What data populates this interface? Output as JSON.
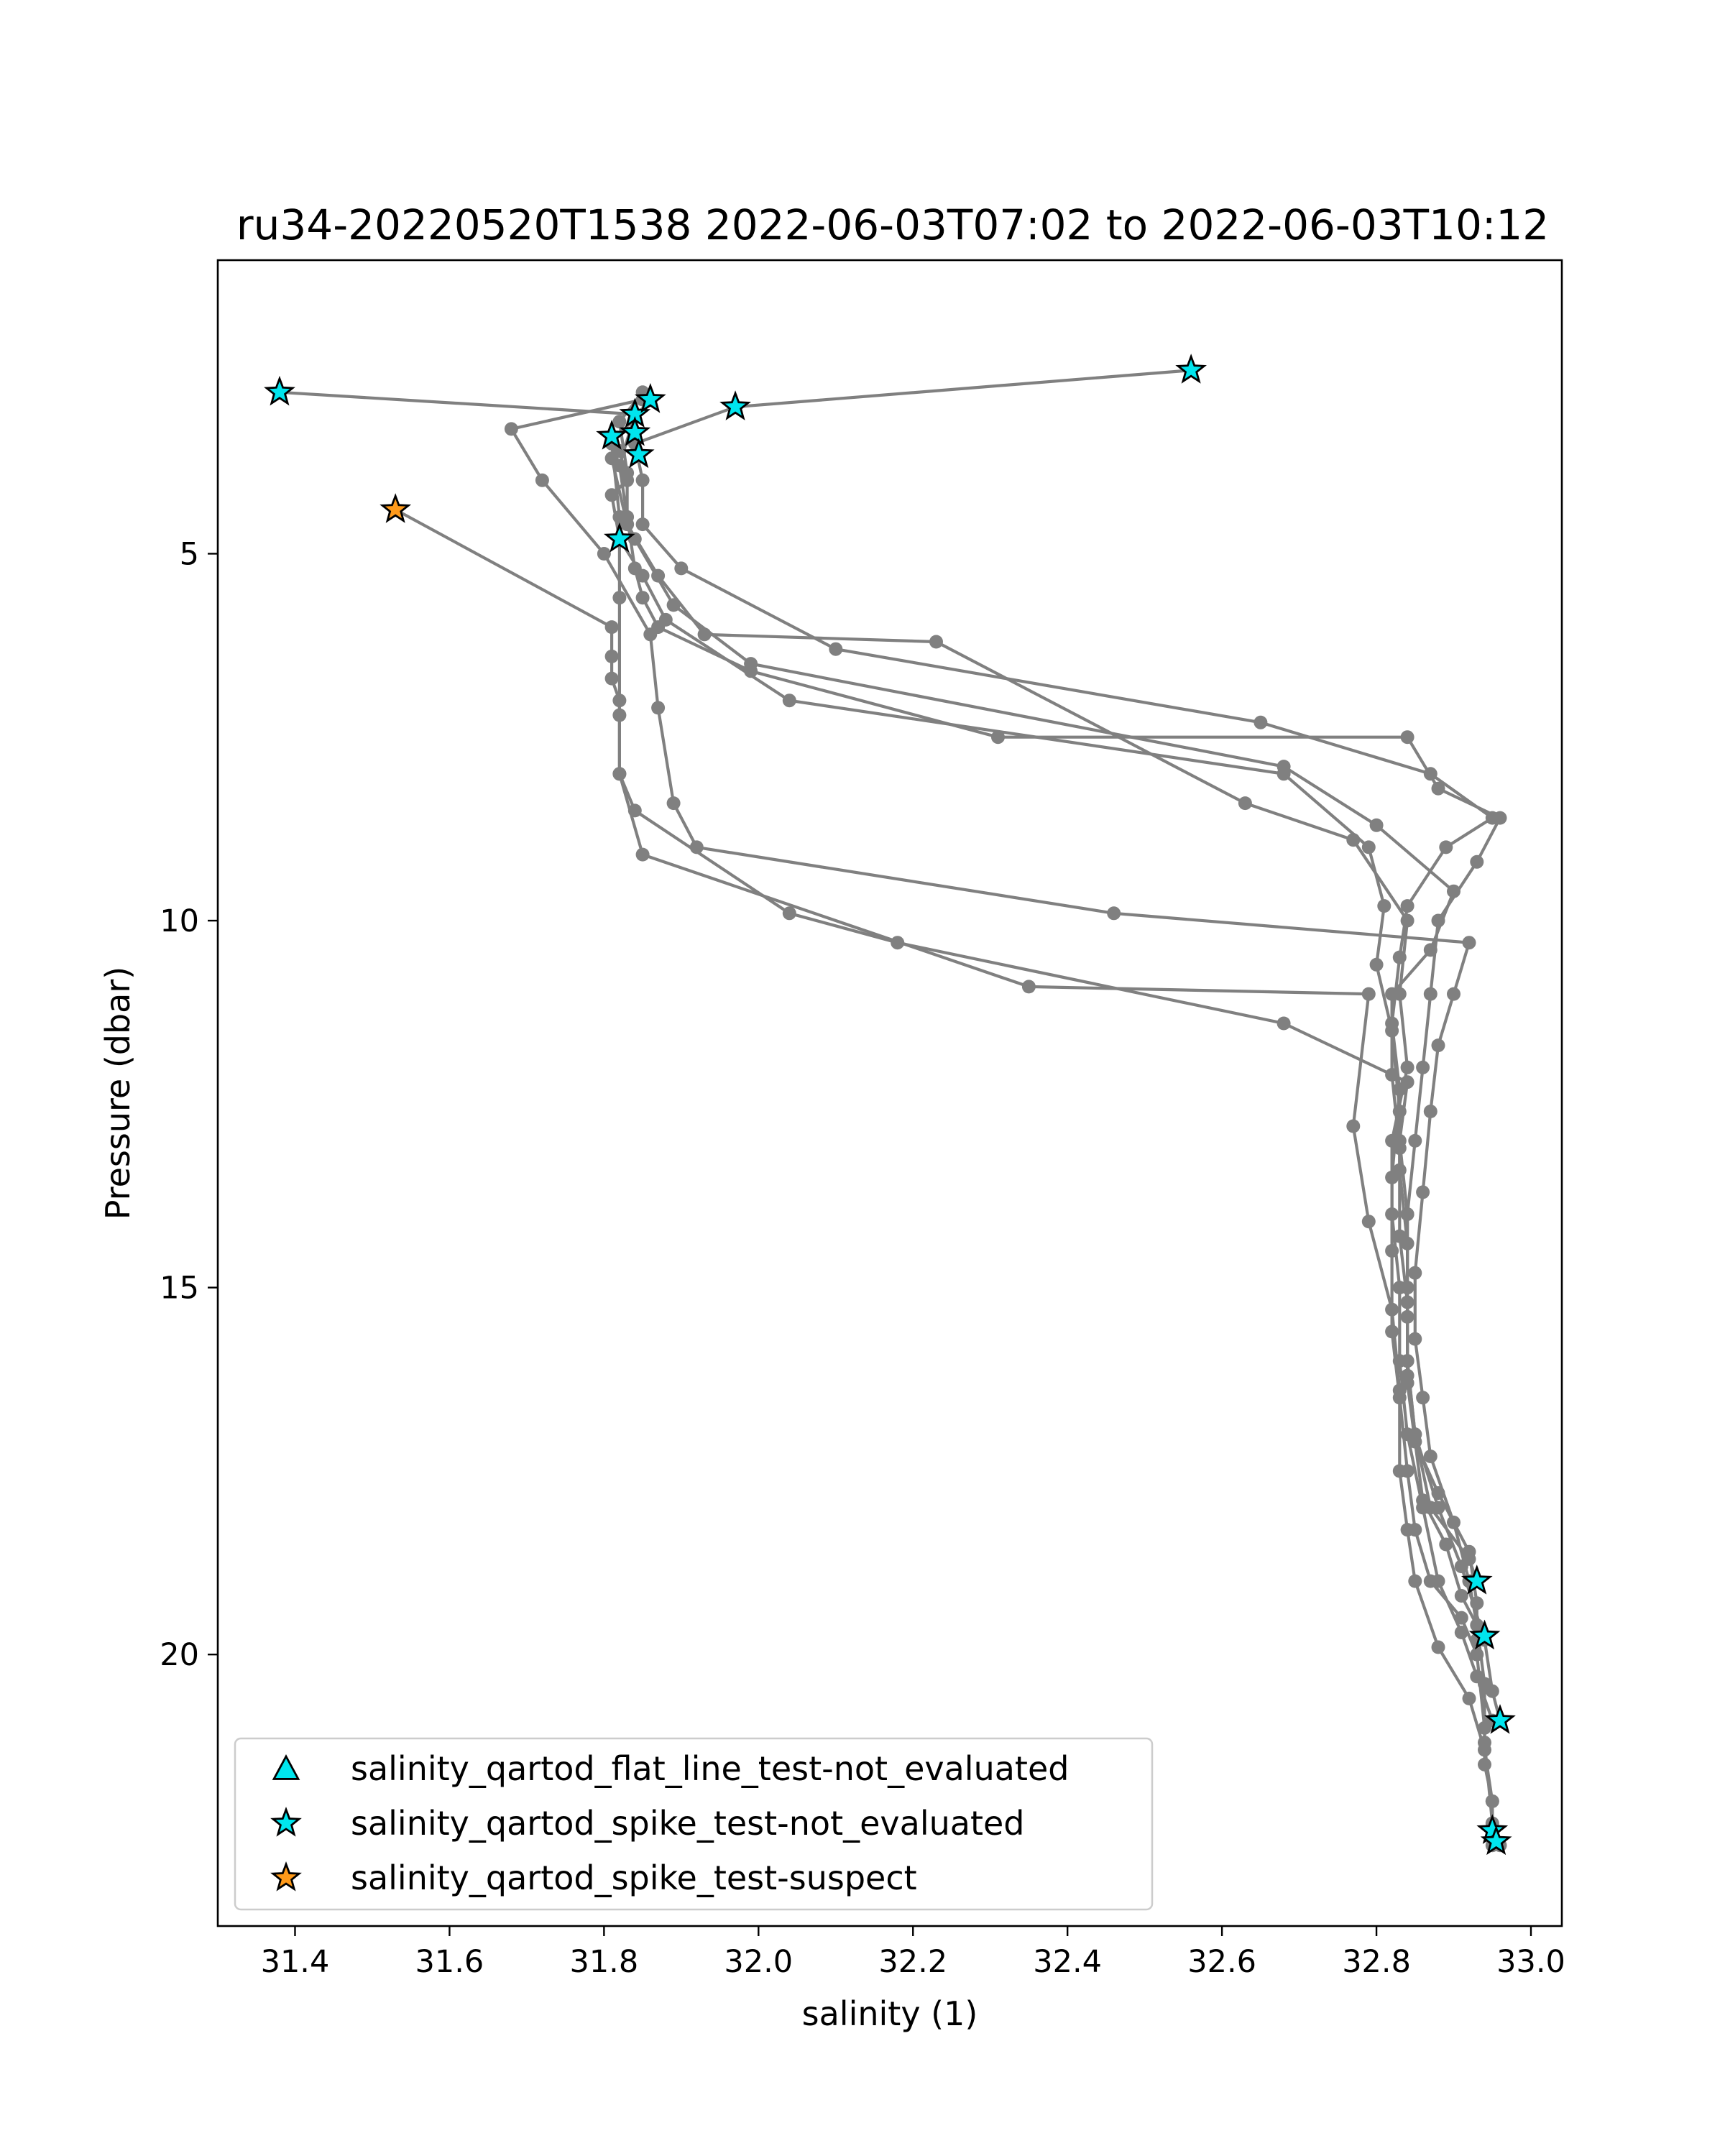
{
  "chart_data": {
    "type": "line",
    "title": "ru34-20220520T1538 2022-06-03T07:02 to 2022-06-03T10:12",
    "xlabel": "salinity (1)",
    "ylabel": "Pressure (dbar)",
    "xlim": [
      31.3,
      33.04
    ],
    "ylim": [
      23.7,
      1.0
    ],
    "y_inverted": true,
    "grid": false,
    "xticks": [
      31.4,
      31.6,
      31.8,
      32.0,
      32.2,
      32.4,
      32.6,
      32.8,
      33.0
    ],
    "xtick_labels": [
      "31.4",
      "31.6",
      "31.8",
      "32.0",
      "32.2",
      "32.4",
      "32.6",
      "32.8",
      "33.0"
    ],
    "yticks": [
      5,
      10,
      15,
      20
    ],
    "ytick_labels": [
      "5",
      "10",
      "15",
      "20"
    ],
    "line_color": "#808080",
    "series": [
      {
        "points": [
          [
            31.38,
            2.8
          ],
          [
            31.84,
            3.1
          ],
          [
            31.82,
            3.8
          ],
          [
            31.83,
            4.5
          ],
          [
            31.84,
            5.2
          ],
          [
            31.85,
            5.6
          ],
          [
            31.87,
            6.0
          ],
          [
            31.99,
            6.6
          ],
          [
            32.31,
            7.5
          ],
          [
            32.84,
            7.5
          ],
          [
            32.88,
            8.2
          ],
          [
            32.96,
            8.6
          ],
          [
            32.93,
            9.2
          ],
          [
            32.88,
            10.0
          ],
          [
            32.87,
            11.0
          ],
          [
            32.86,
            12.0
          ],
          [
            32.85,
            13.0
          ],
          [
            32.84,
            14.0
          ],
          [
            32.84,
            15.0
          ],
          [
            32.84,
            16.0
          ],
          [
            32.85,
            17.0
          ],
          [
            32.87,
            18.0
          ],
          [
            32.92,
            18.7
          ],
          [
            32.93,
            19.0
          ]
        ]
      },
      {
        "points": [
          [
            31.86,
            2.9
          ],
          [
            31.81,
            3.5
          ],
          [
            31.82,
            4.5
          ],
          [
            31.82,
            5.6
          ],
          [
            31.82,
            7.2
          ],
          [
            31.82,
            8.0
          ],
          [
            31.84,
            8.5
          ],
          [
            32.04,
            9.9
          ],
          [
            32.18,
            10.3
          ],
          [
            32.68,
            11.4
          ],
          [
            32.84,
            12.2
          ],
          [
            32.83,
            13.0
          ],
          [
            32.84,
            14.0
          ],
          [
            32.84,
            15.0
          ],
          [
            32.84,
            16.0
          ],
          [
            32.85,
            17.0
          ],
          [
            32.88,
            18.0
          ],
          [
            32.91,
            18.8
          ],
          [
            32.94,
            19.8
          ],
          [
            32.95,
            20.5
          ],
          [
            32.96,
            20.9
          ]
        ]
      },
      {
        "points": [
          [
            32.56,
            2.5
          ],
          [
            31.97,
            3.0
          ],
          [
            31.84,
            3.5
          ],
          [
            31.85,
            4.0
          ],
          [
            31.85,
            4.6
          ],
          [
            31.9,
            5.2
          ],
          [
            32.1,
            6.3
          ],
          [
            32.65,
            7.3
          ],
          [
            32.87,
            8.0
          ],
          [
            32.95,
            8.6
          ],
          [
            32.89,
            9.0
          ],
          [
            32.84,
            9.8
          ],
          [
            32.83,
            10.5
          ],
          [
            32.82,
            11.4
          ],
          [
            32.83,
            12.3
          ],
          [
            32.82,
            13.5
          ],
          [
            32.82,
            14.5
          ],
          [
            32.82,
            15.6
          ],
          [
            32.83,
            16.5
          ],
          [
            32.84,
            17.5
          ],
          [
            32.85,
            18.3
          ],
          [
            32.87,
            19.0
          ],
          [
            32.91,
            19.5
          ],
          [
            32.93,
            20.0
          ],
          [
            32.94,
            21.0
          ],
          [
            32.94,
            21.5
          ],
          [
            32.95,
            22.0
          ],
          [
            32.95,
            22.4
          ]
        ]
      },
      {
        "points": [
          [
            31.85,
            2.9
          ],
          [
            31.68,
            3.3
          ],
          [
            31.72,
            4.0
          ],
          [
            31.8,
            5.0
          ],
          [
            31.86,
            6.1
          ],
          [
            31.87,
            7.1
          ],
          [
            31.89,
            8.4
          ],
          [
            31.92,
            9.0
          ],
          [
            32.46,
            9.9
          ],
          [
            32.92,
            10.3
          ],
          [
            32.9,
            11.0
          ],
          [
            32.88,
            11.7
          ],
          [
            32.87,
            12.6
          ],
          [
            32.86,
            13.7
          ],
          [
            32.85,
            14.8
          ],
          [
            32.85,
            15.7
          ],
          [
            32.86,
            16.5
          ],
          [
            32.87,
            17.3
          ],
          [
            32.9,
            18.2
          ],
          [
            32.92,
            19.0
          ],
          [
            32.93,
            19.6
          ],
          [
            32.94,
            20.4
          ],
          [
            32.94,
            21.2
          ],
          [
            32.95,
            22.3
          ],
          [
            32.95,
            22.5
          ],
          [
            32.96,
            22.6
          ]
        ]
      },
      {
        "points": [
          [
            31.84,
            3.4
          ],
          [
            31.81,
            3.7
          ],
          [
            31.83,
            4.6
          ],
          [
            31.84,
            4.8
          ],
          [
            31.89,
            5.7
          ],
          [
            31.99,
            6.5
          ],
          [
            32.68,
            7.9
          ],
          [
            32.8,
            8.7
          ],
          [
            32.9,
            9.6
          ],
          [
            32.87,
            10.4
          ],
          [
            32.82,
            11.0
          ],
          [
            32.82,
            12.1
          ],
          [
            32.83,
            13.1
          ],
          [
            32.83,
            14.3
          ],
          [
            32.84,
            15.2
          ],
          [
            32.84,
            16.2
          ],
          [
            32.85,
            17.1
          ],
          [
            32.88,
            17.8
          ],
          [
            32.92,
            18.6
          ],
          [
            32.93,
            19.3
          ],
          [
            32.93,
            19.8
          ]
        ]
      },
      {
        "points": [
          [
            31.82,
            3.6
          ],
          [
            31.83,
            4.0
          ],
          [
            31.81,
            4.2
          ],
          [
            31.82,
            4.8
          ],
          [
            31.85,
            5.3
          ],
          [
            31.88,
            5.9
          ],
          [
            32.04,
            7.0
          ],
          [
            32.68,
            8.0
          ],
          [
            32.79,
            9.0
          ],
          [
            32.81,
            9.8
          ],
          [
            32.8,
            10.6
          ],
          [
            32.82,
            11.5
          ],
          [
            32.83,
            12.6
          ],
          [
            32.83,
            13.4
          ],
          [
            32.84,
            14.4
          ],
          [
            32.84,
            15.4
          ],
          [
            32.84,
            16.3
          ],
          [
            32.85,
            17.1
          ],
          [
            32.86,
            17.9
          ],
          [
            32.89,
            18.5
          ],
          [
            32.91,
            19.2
          ],
          [
            32.94,
            19.8
          ]
        ]
      },
      {
        "points": [
          [
            31.53,
            4.4
          ],
          [
            31.81,
            6.0
          ],
          [
            31.81,
            6.4
          ],
          [
            31.81,
            6.7
          ],
          [
            31.82,
            7.0
          ],
          [
            31.82,
            8.0
          ],
          [
            31.85,
            9.1
          ],
          [
            32.35,
            10.9
          ],
          [
            32.79,
            11.0
          ],
          [
            32.77,
            12.8
          ],
          [
            32.79,
            14.1
          ],
          [
            32.82,
            15.3
          ],
          [
            32.83,
            16.4
          ],
          [
            32.83,
            17.5
          ],
          [
            32.84,
            18.3
          ],
          [
            32.85,
            19.0
          ],
          [
            32.88,
            19.9
          ],
          [
            32.92,
            20.6
          ],
          [
            32.94,
            21.3
          ],
          [
            32.95,
            22.0
          ],
          [
            32.95,
            22.6
          ]
        ]
      },
      {
        "points": [
          [
            31.85,
            2.8
          ],
          [
            31.82,
            3.2
          ],
          [
            31.83,
            3.9
          ],
          [
            31.83,
            4.6
          ],
          [
            31.87,
            5.3
          ],
          [
            31.93,
            6.1
          ],
          [
            32.23,
            6.2
          ],
          [
            32.63,
            8.4
          ],
          [
            32.77,
            8.9
          ],
          [
            32.84,
            10.0
          ],
          [
            32.83,
            11.0
          ],
          [
            32.84,
            12.0
          ],
          [
            32.82,
            13.0
          ],
          [
            32.82,
            14.0
          ],
          [
            32.83,
            15.0
          ],
          [
            32.83,
            16.0
          ],
          [
            32.84,
            17.0
          ],
          [
            32.86,
            18.0
          ],
          [
            32.88,
            19.0
          ],
          [
            32.91,
            19.7
          ],
          [
            32.93,
            20.3
          ],
          [
            32.95,
            20.9
          ]
        ]
      }
    ],
    "markers": [
      {
        "x": 31.38,
        "y": 2.8,
        "flag": "not_evaluated"
      },
      {
        "x": 31.84,
        "y": 3.1,
        "flag": "not_evaluated"
      },
      {
        "x": 31.86,
        "y": 2.9,
        "flag": "not_evaluated"
      },
      {
        "x": 31.97,
        "y": 3.0,
        "flag": "not_evaluated"
      },
      {
        "x": 32.56,
        "y": 2.5,
        "flag": "not_evaluated"
      },
      {
        "x": 31.81,
        "y": 3.4,
        "flag": "not_evaluated"
      },
      {
        "x": 31.84,
        "y": 3.35,
        "flag": "not_evaluated"
      },
      {
        "x": 31.845,
        "y": 3.65,
        "flag": "not_evaluated"
      },
      {
        "x": 31.82,
        "y": 4.8,
        "flag": "not_evaluated"
      },
      {
        "x": 31.53,
        "y": 4.4,
        "flag": "suspect"
      },
      {
        "x": 32.93,
        "y": 19.0,
        "flag": "not_evaluated"
      },
      {
        "x": 32.94,
        "y": 19.75,
        "flag": "not_evaluated"
      },
      {
        "x": 32.96,
        "y": 20.9,
        "flag": "not_evaluated"
      },
      {
        "x": 32.95,
        "y": 22.4,
        "flag": "not_evaluated"
      },
      {
        "x": 32.955,
        "y": 22.55,
        "flag": "not_evaluated"
      }
    ],
    "legend": {
      "placement": "lower-left",
      "entries": [
        {
          "label": "salinity_qartod_flat_line_test-not_evaluated",
          "marker": "triangle",
          "color": "#00e5ee"
        },
        {
          "label": "salinity_qartod_spike_test-not_evaluated",
          "marker": "star",
          "color": "#00e5ee"
        },
        {
          "label": "salinity_qartod_spike_test-suspect",
          "marker": "star",
          "color": "#ff9a1a"
        }
      ]
    },
    "colors": {
      "not_evaluated": "#00e5ee",
      "suspect": "#ff9a1a",
      "marker_edge": "#000000"
    }
  }
}
